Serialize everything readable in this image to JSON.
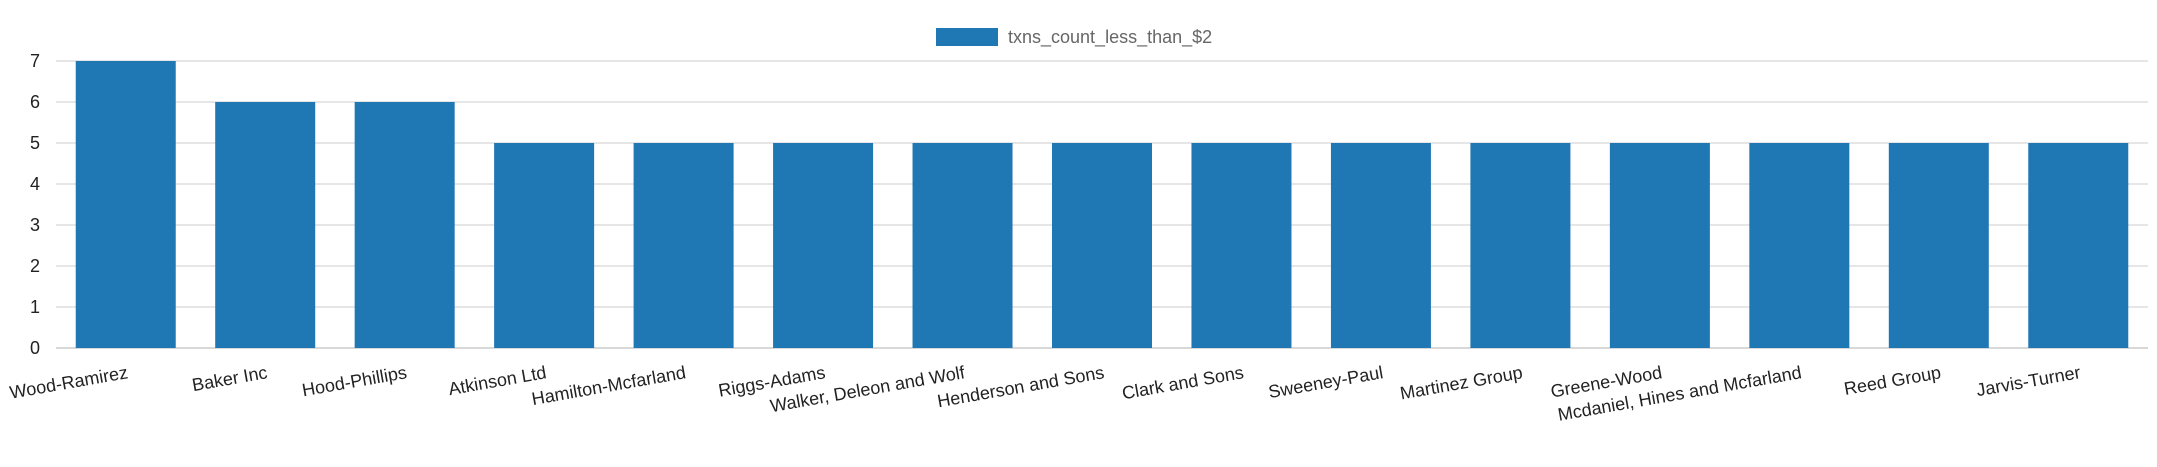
{
  "chart_data": {
    "type": "bar",
    "categories": [
      "Wood-Ramirez",
      "Baker Inc",
      "Hood-Phillips",
      "Atkinson Ltd",
      "Hamilton-Mcfarland",
      "Riggs-Adams",
      "Walker, Deleon and Wolf",
      "Henderson and Sons",
      "Clark and Sons",
      "Sweeney-Paul",
      "Martinez Group",
      "Greene-Wood",
      "Mcdaniel, Hines and Mcfarland",
      "Reed Group",
      "Jarvis-Turner"
    ],
    "series": [
      {
        "name": "txns_count_less_than_$2",
        "values": [
          7,
          6,
          6,
          5,
          5,
          5,
          5,
          5,
          5,
          5,
          5,
          5,
          5,
          5,
          5
        ],
        "color": "#1f77b4"
      }
    ],
    "ylim": [
      0,
      7
    ],
    "yticks": [
      "0",
      "1",
      "2",
      "3",
      "4",
      "5",
      "6",
      "7"
    ],
    "grid": true,
    "legend_position": "top-center",
    "x_label_rotation": "slanted"
  }
}
